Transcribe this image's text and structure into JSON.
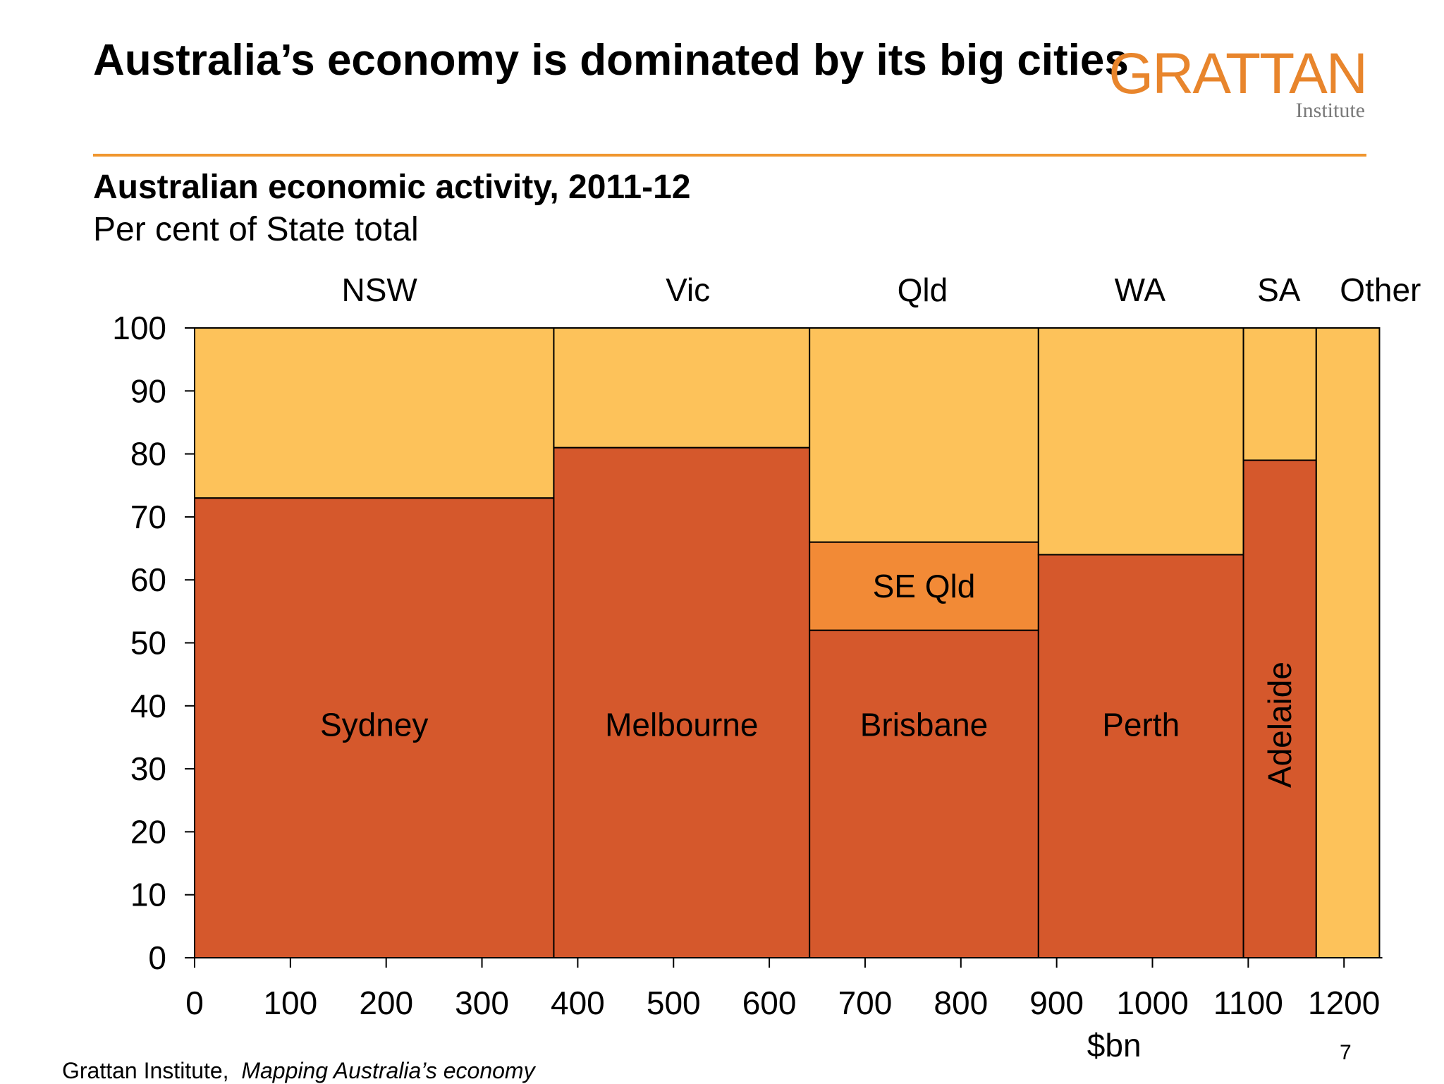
{
  "slide": {
    "title": "Australia’s economy is dominated by its big cities",
    "logo": {
      "name": "GRATTAN",
      "sub": "Institute"
    },
    "footer_org": "Grattan Institute,",
    "footer_pub": "Mapping Australia’s economy",
    "page_number": "7"
  },
  "colors": {
    "city": "#d5582c",
    "rest": "#fdc25a",
    "seqld": "#f28a36",
    "accent_rule": "#f0962e",
    "logo": "#e8852c"
  },
  "chart_data": {
    "type": "marimekko",
    "title": "Australian economic activity, 2011-12",
    "subtitle": "Per cent of State total",
    "xlabel": "$bn",
    "ylabel": "",
    "xlim": [
      0,
      1240
    ],
    "ylim": [
      0,
      100
    ],
    "xticks": [
      0,
      100,
      200,
      300,
      400,
      500,
      600,
      700,
      800,
      900,
      1000,
      1100,
      1200
    ],
    "yticks": [
      0,
      10,
      20,
      30,
      40,
      50,
      60,
      70,
      80,
      90,
      100
    ],
    "states": [
      {
        "name": "NSW",
        "x_start": 0,
        "x_end": 375,
        "label_x": 193,
        "segments": [
          {
            "label": "Sydney",
            "kind": "city",
            "from": 0,
            "to": 73,
            "label_y": 37
          },
          {
            "label": "",
            "kind": "rest",
            "from": 73,
            "to": 100
          }
        ]
      },
      {
        "name": "Vic",
        "x_start": 375,
        "x_end": 642,
        "label_x": 515,
        "segments": [
          {
            "label": "Melbourne",
            "kind": "city",
            "from": 0,
            "to": 81,
            "label_y": 37
          },
          {
            "label": "",
            "kind": "rest",
            "from": 81,
            "to": 100
          }
        ]
      },
      {
        "name": "Qld",
        "x_start": 642,
        "x_end": 881,
        "label_x": 760,
        "segments": [
          {
            "label": "Brisbane",
            "kind": "city",
            "from": 0,
            "to": 52,
            "label_y": 37
          },
          {
            "label": "SE Qld",
            "kind": "seqld",
            "from": 52,
            "to": 66,
            "label_y": 59
          },
          {
            "label": "",
            "kind": "rest",
            "from": 66,
            "to": 100
          }
        ]
      },
      {
        "name": "WA",
        "x_start": 881,
        "x_end": 1095,
        "label_x": 987,
        "segments": [
          {
            "label": "Perth",
            "kind": "city",
            "from": 0,
            "to": 64,
            "label_y": 37
          },
          {
            "label": "",
            "kind": "rest",
            "from": 64,
            "to": 100
          }
        ]
      },
      {
        "name": "SA",
        "x_start": 1095,
        "x_end": 1171,
        "label_x": 1132,
        "segments": [
          {
            "label": "Adelaide",
            "kind": "city",
            "from": 0,
            "to": 79,
            "label_y": 37,
            "rotated": true
          },
          {
            "label": "",
            "kind": "rest",
            "from": 79,
            "to": 100
          }
        ]
      },
      {
        "name": "Other",
        "x_start": 1171,
        "x_end": 1237,
        "label_x": 1238,
        "segments": [
          {
            "label": "",
            "kind": "rest",
            "from": 0,
            "to": 100
          }
        ]
      }
    ]
  }
}
